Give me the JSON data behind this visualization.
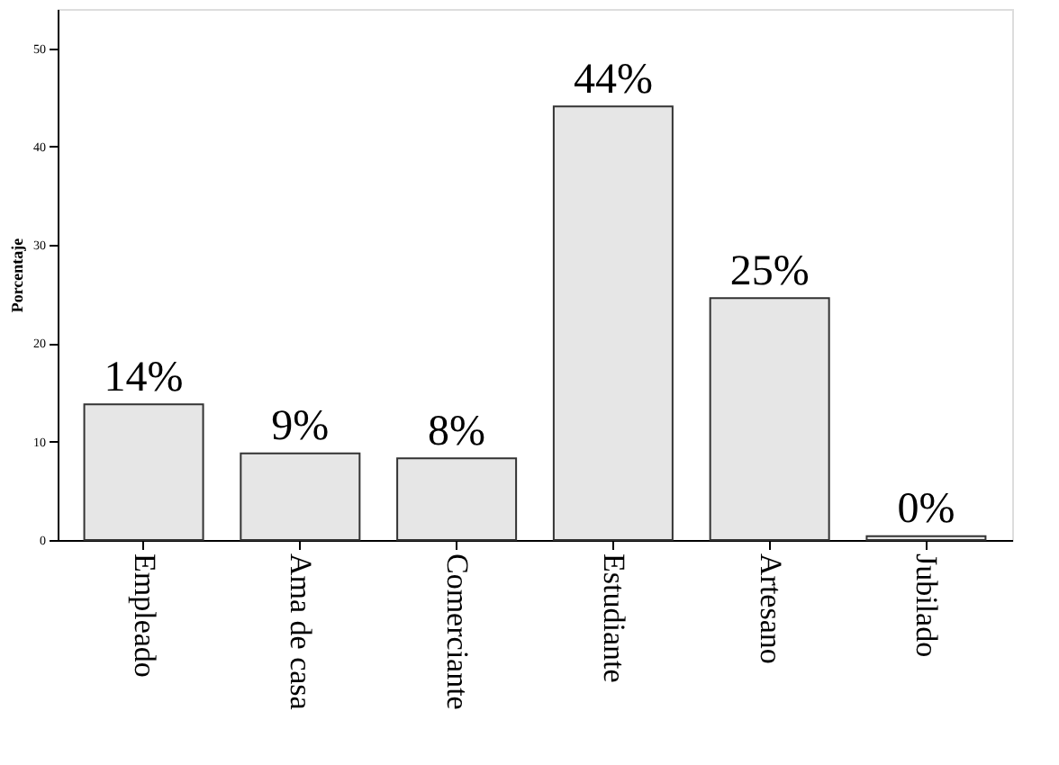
{
  "chart_data": {
    "type": "bar",
    "ylabel": "Porcentaje",
    "categories": [
      "Empleado",
      "Ama de casa",
      "Comerciante",
      "Estudiante",
      "Artesano",
      "Jubilado"
    ],
    "values": [
      13.8,
      8.8,
      8.3,
      44.1,
      24.6,
      0.4
    ],
    "value_labels": [
      "14%",
      "9%",
      "8%",
      "44%",
      "25%",
      "0%"
    ],
    "color": "#e6e6e6",
    "ylim": [
      0,
      54
    ],
    "yticks": [
      0,
      10,
      20,
      30,
      40,
      50
    ],
    "grid": false
  }
}
